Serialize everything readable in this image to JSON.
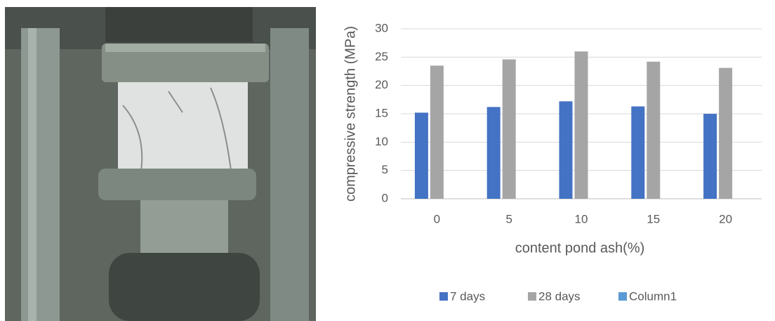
{
  "chart_data": {
    "type": "bar",
    "x_label": "content pond ash(%)",
    "y_label": "compressive strength (MPa)",
    "categories": [
      "0",
      "5",
      "10",
      "15",
      "20"
    ],
    "series": [
      {
        "name": "7 days",
        "color": "#4472c4",
        "values": [
          15.2,
          16.2,
          17.2,
          16.3,
          15.0
        ]
      },
      {
        "name": "28 days",
        "color": "#a5a5a5",
        "values": [
          23.5,
          24.6,
          26.0,
          24.2,
          23.1
        ]
      },
      {
        "name": "Column1",
        "color": "#5b9bd5",
        "values": [
          null,
          null,
          null,
          null,
          null
        ]
      }
    ],
    "ylim": [
      0,
      30
    ],
    "yticks": [
      0,
      5,
      10,
      15,
      20,
      25,
      30
    ],
    "grid": true,
    "legend": "bottom"
  }
}
